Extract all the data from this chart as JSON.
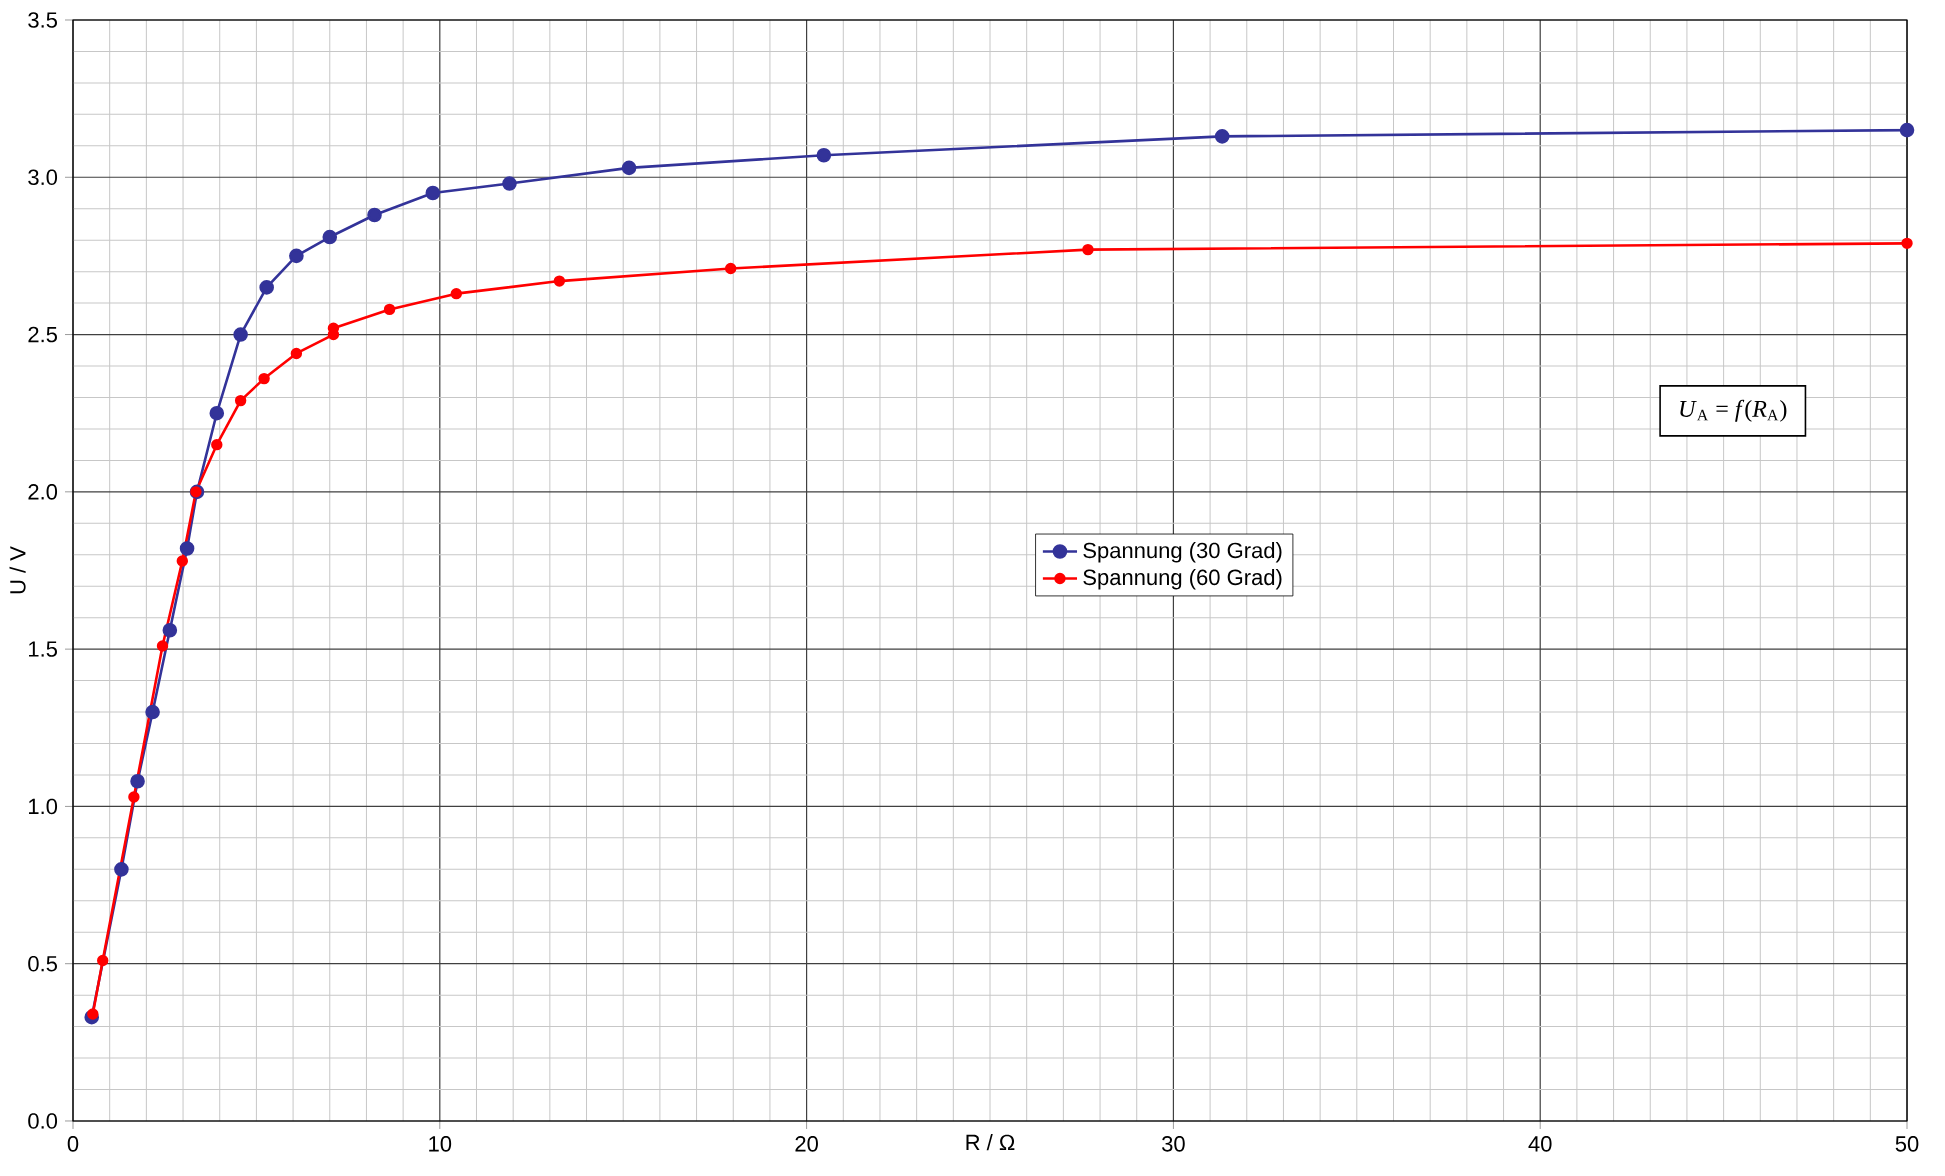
{
  "chart_data": {
    "type": "line",
    "xlabel": "R / Ω",
    "ylabel": "U / V",
    "xlim": [
      0,
      50
    ],
    "ylim": [
      0,
      3.5
    ],
    "xticks": [
      0,
      10,
      20,
      30,
      40,
      50
    ],
    "yticks": [
      {
        "value": 0,
        "label": "0.0"
      },
      {
        "value": 0.5,
        "label": "0.5"
      },
      {
        "value": 1,
        "label": "1.0"
      },
      {
        "value": 1.5,
        "label": "1.5"
      },
      {
        "value": 2,
        "label": "2.0"
      },
      {
        "value": 2.5,
        "label": "2.5"
      },
      {
        "value": 3,
        "label": "3.0"
      },
      {
        "value": 3.5,
        "label": "3.5"
      }
    ],
    "grid": true,
    "legend": "center",
    "marker": "circle",
    "line_style": "solid",
    "annotations": [
      "*U*$_{A}$ = *f*(*R*$_{A}$)"
    ],
    "series": [
      {
        "name": "Spannung (30 Grad)",
        "color": "#333399",
        "x": [
          0.51,
          1.32,
          1.76,
          2.17,
          2.64,
          3.11,
          3.38,
          3.92,
          4.57,
          5.28,
          6.09,
          7.0,
          8.22,
          9.81,
          11.9,
          15.16,
          20.47,
          31.33,
          50
        ],
        "values": [
          0.33,
          0.8,
          1.08,
          1.3,
          1.56,
          1.82,
          2.0,
          2.25,
          2.5,
          2.65,
          2.75,
          2.81,
          2.88,
          2.95,
          2.98,
          3.03,
          3.07,
          3.13,
          3.15
        ]
      },
      {
        "name": "Spannung (60 Grad)",
        "color": "#ff0000",
        "x": [
          0.54,
          0.81,
          1.66,
          2.44,
          2.98,
          3.35,
          3.92,
          4.57,
          5.21,
          6.09,
          7.1,
          7.1,
          8.63,
          10.45,
          13.26,
          17.93,
          27.67,
          50
        ],
        "values": [
          0.34,
          0.51,
          1.03,
          1.51,
          1.78,
          2.0,
          2.15,
          2.29,
          2.36,
          2.44,
          2.5,
          2.52,
          2.58,
          2.63,
          2.67,
          2.71,
          2.77,
          2.79
        ]
      }
    ]
  }
}
